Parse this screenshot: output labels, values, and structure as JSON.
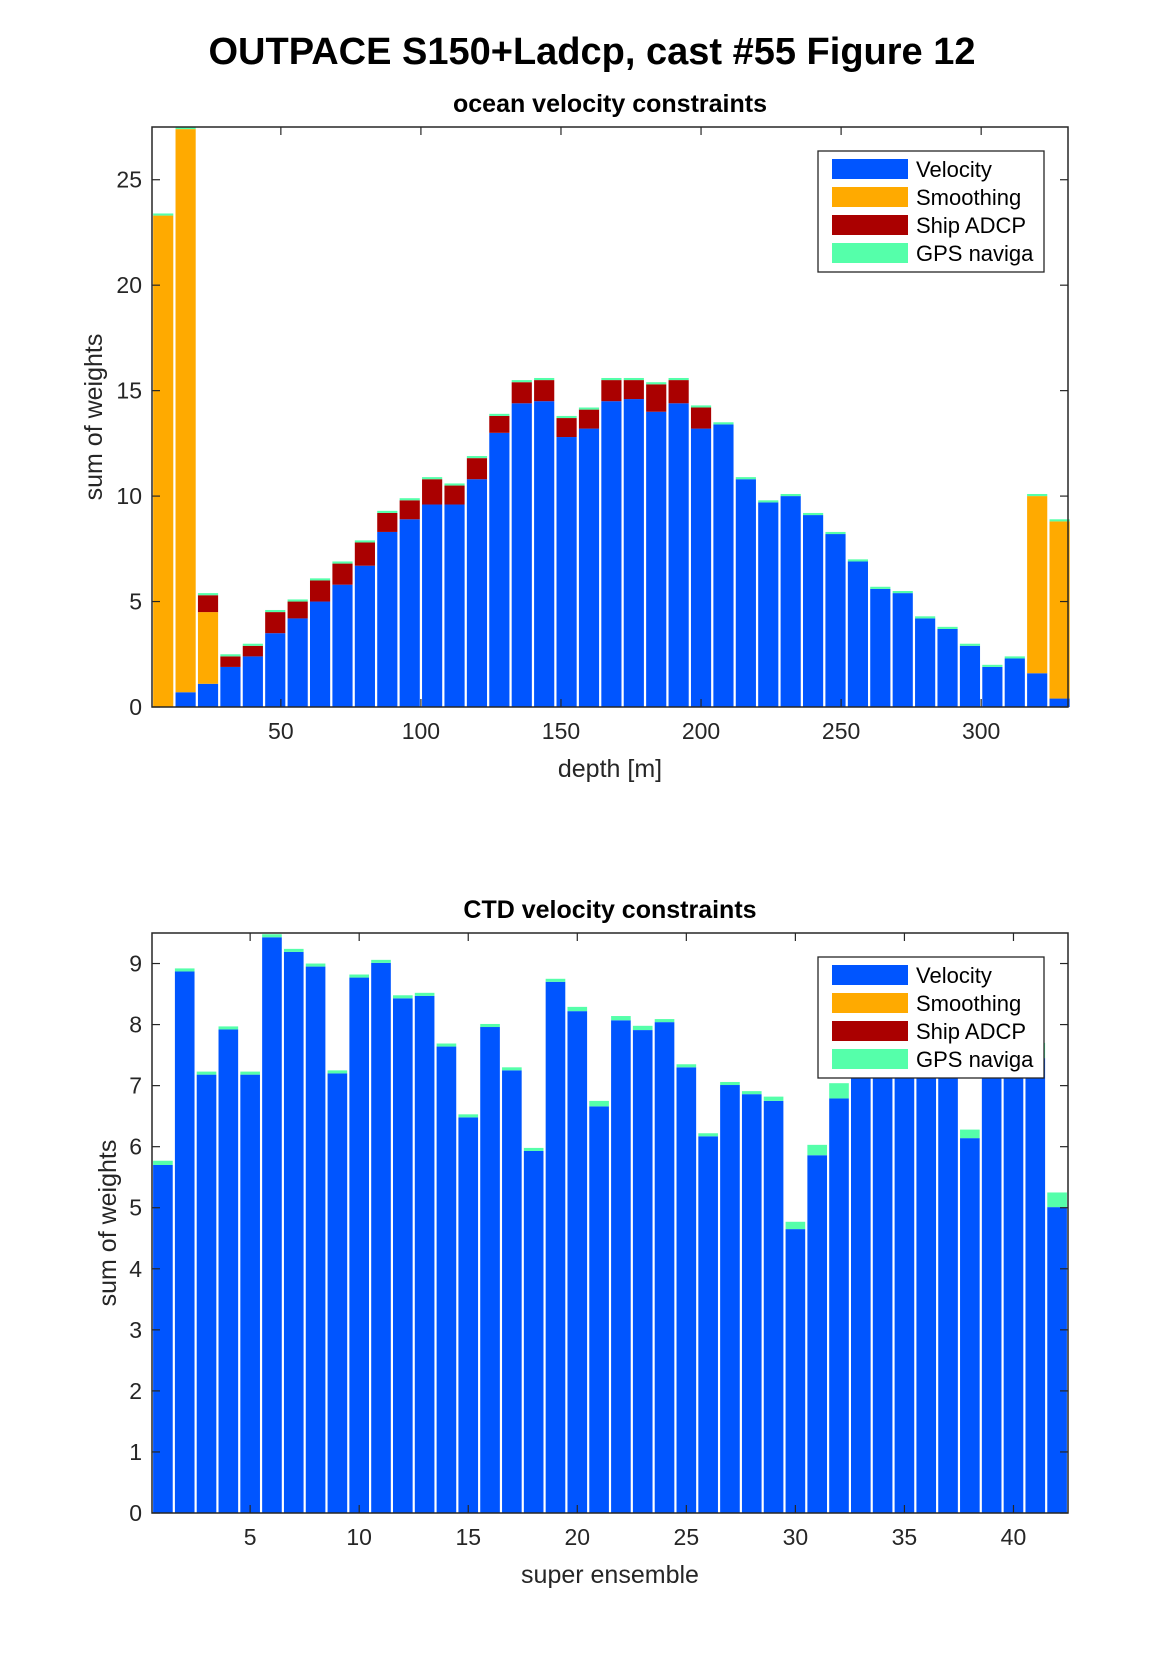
{
  "figure_title": "OUTPACE S150+Ladcp, cast #55  Figure 12",
  "colors": {
    "Velocity": "#0055FF",
    "Smoothing": "#FFAA00",
    "Ship ADCP": "#AA0000",
    "GPS naviga": "#55FFAA"
  },
  "chart_data": [
    {
      "type": "bar",
      "stacked": true,
      "title": "ocean velocity constraints",
      "xlabel": "depth [m]",
      "ylabel": "sum of weights",
      "xlim": [
        4,
        331
      ],
      "ylim": [
        0,
        27.5
      ],
      "xticks": [
        50,
        100,
        150,
        200,
        250,
        300
      ],
      "yticks": [
        0,
        5,
        10,
        15,
        20,
        25
      ],
      "grid": false,
      "legend_position": "top-right",
      "x": [
        8,
        16,
        24,
        32,
        40,
        48,
        56,
        64,
        72,
        80,
        88,
        96,
        104,
        112,
        120,
        128,
        136,
        144,
        152,
        160,
        168,
        176,
        184,
        192,
        200,
        208,
        216,
        224,
        232,
        240,
        248,
        256,
        264,
        272,
        280,
        288,
        296,
        304,
        312,
        320,
        328
      ],
      "series": [
        {
          "name": "Velocity",
          "values": [
            0.0,
            0.7,
            1.1,
            1.9,
            2.4,
            3.5,
            4.2,
            5.0,
            5.8,
            6.7,
            8.3,
            8.9,
            9.6,
            9.6,
            10.8,
            13.0,
            14.4,
            14.5,
            12.8,
            13.2,
            14.5,
            14.6,
            14.0,
            14.4,
            13.2,
            13.4,
            10.8,
            9.7,
            10.0,
            9.1,
            8.2,
            6.9,
            5.6,
            5.4,
            4.2,
            3.7,
            2.9,
            1.9,
            2.3,
            1.6,
            0.4
          ]
        },
        {
          "name": "Smoothing",
          "values": [
            23.3,
            26.7,
            3.4,
            0.0,
            0.0,
            0.0,
            0.0,
            0.0,
            0.0,
            0.0,
            0.0,
            0.0,
            0.0,
            0.0,
            0.0,
            0.0,
            0.0,
            0.0,
            0.0,
            0.0,
            0.0,
            0.0,
            0.0,
            0.0,
            0.0,
            0.0,
            0.0,
            0.0,
            0.0,
            0.0,
            0.0,
            0.0,
            0.0,
            0.0,
            0.0,
            0.0,
            0.0,
            0.0,
            0.0,
            8.4,
            8.4
          ]
        },
        {
          "name": "Ship ADCP",
          "values": [
            0.0,
            0.0,
            0.8,
            0.5,
            0.5,
            1.0,
            0.8,
            1.0,
            1.0,
            1.1,
            0.9,
            0.9,
            1.2,
            0.9,
            1.0,
            0.8,
            1.0,
            1.0,
            0.9,
            0.9,
            1.0,
            0.9,
            1.3,
            1.1,
            1.0,
            0.0,
            0.0,
            0.0,
            0.0,
            0.0,
            0.0,
            0.0,
            0.0,
            0.0,
            0.0,
            0.0,
            0.0,
            0.0,
            0.0,
            0.0,
            0.0
          ]
        },
        {
          "name": "GPS naviga",
          "values": [
            0.1,
            0.1,
            0.1,
            0.1,
            0.1,
            0.1,
            0.1,
            0.1,
            0.1,
            0.1,
            0.1,
            0.1,
            0.1,
            0.1,
            0.1,
            0.1,
            0.1,
            0.1,
            0.1,
            0.1,
            0.1,
            0.1,
            0.1,
            0.1,
            0.1,
            0.1,
            0.1,
            0.1,
            0.1,
            0.1,
            0.1,
            0.1,
            0.1,
            0.1,
            0.1,
            0.1,
            0.1,
            0.1,
            0.1,
            0.1,
            0.1
          ]
        }
      ]
    },
    {
      "type": "bar",
      "stacked": true,
      "title": "CTD velocity constraints",
      "xlabel": "super ensemble",
      "ylabel": "sum of weights",
      "xlim": [
        0.5,
        42.5
      ],
      "ylim": [
        0,
        9.5
      ],
      "xticks": [
        5,
        10,
        15,
        20,
        25,
        30,
        35,
        40
      ],
      "yticks": [
        0,
        1,
        2,
        3,
        4,
        5,
        6,
        7,
        8,
        9
      ],
      "grid": false,
      "legend_position": "top-right",
      "x": [
        1,
        2,
        3,
        4,
        5,
        6,
        7,
        8,
        9,
        10,
        11,
        12,
        13,
        14,
        15,
        16,
        17,
        18,
        19,
        20,
        21,
        22,
        23,
        24,
        25,
        26,
        27,
        28,
        29,
        30,
        31,
        32,
        33,
        34,
        35,
        36,
        37,
        38,
        39,
        40,
        41,
        42
      ],
      "series": [
        {
          "name": "Velocity",
          "values": [
            5.7,
            8.87,
            7.18,
            7.92,
            7.18,
            9.43,
            9.19,
            8.95,
            7.2,
            8.77,
            9.01,
            8.43,
            8.47,
            7.64,
            6.48,
            7.96,
            7.25,
            5.93,
            8.7,
            8.22,
            6.66,
            8.07,
            7.91,
            8.04,
            7.3,
            6.17,
            7.01,
            6.86,
            6.75,
            4.65,
            5.86,
            6.79,
            7.55,
            7.55,
            7.55,
            7.55,
            7.55,
            6.14,
            7.55,
            7.55,
            7.45,
            5.01
          ]
        },
        {
          "name": "Smoothing",
          "values": [
            0,
            0,
            0,
            0,
            0,
            0,
            0,
            0,
            0,
            0,
            0,
            0,
            0,
            0,
            0,
            0,
            0,
            0,
            0,
            0,
            0,
            0,
            0,
            0,
            0,
            0,
            0,
            0,
            0,
            0,
            0,
            0,
            0,
            0,
            0,
            0,
            0,
            0,
            0,
            0,
            0,
            0
          ]
        },
        {
          "name": "Ship ADCP",
          "values": [
            0,
            0,
            0,
            0,
            0,
            0,
            0,
            0,
            0,
            0,
            0,
            0,
            0,
            0,
            0,
            0,
            0,
            0,
            0,
            0,
            0,
            0,
            0,
            0,
            0,
            0,
            0,
            0,
            0,
            0,
            0,
            0,
            0,
            0,
            0,
            0,
            0,
            0,
            0,
            0,
            0,
            0
          ]
        },
        {
          "name": "GPS naviga",
          "values": [
            0.07,
            0.05,
            0.05,
            0.05,
            0.05,
            0.05,
            0.05,
            0.05,
            0.05,
            0.05,
            0.05,
            0.05,
            0.05,
            0.05,
            0.05,
            0.05,
            0.05,
            0.05,
            0.05,
            0.07,
            0.09,
            0.07,
            0.07,
            0.05,
            0.05,
            0.05,
            0.05,
            0.05,
            0.07,
            0.12,
            0.17,
            0.25,
            0.1,
            0.1,
            0.1,
            0.1,
            0.1,
            0.14,
            0.1,
            0.1,
            0.25,
            0.24
          ]
        }
      ]
    }
  ]
}
